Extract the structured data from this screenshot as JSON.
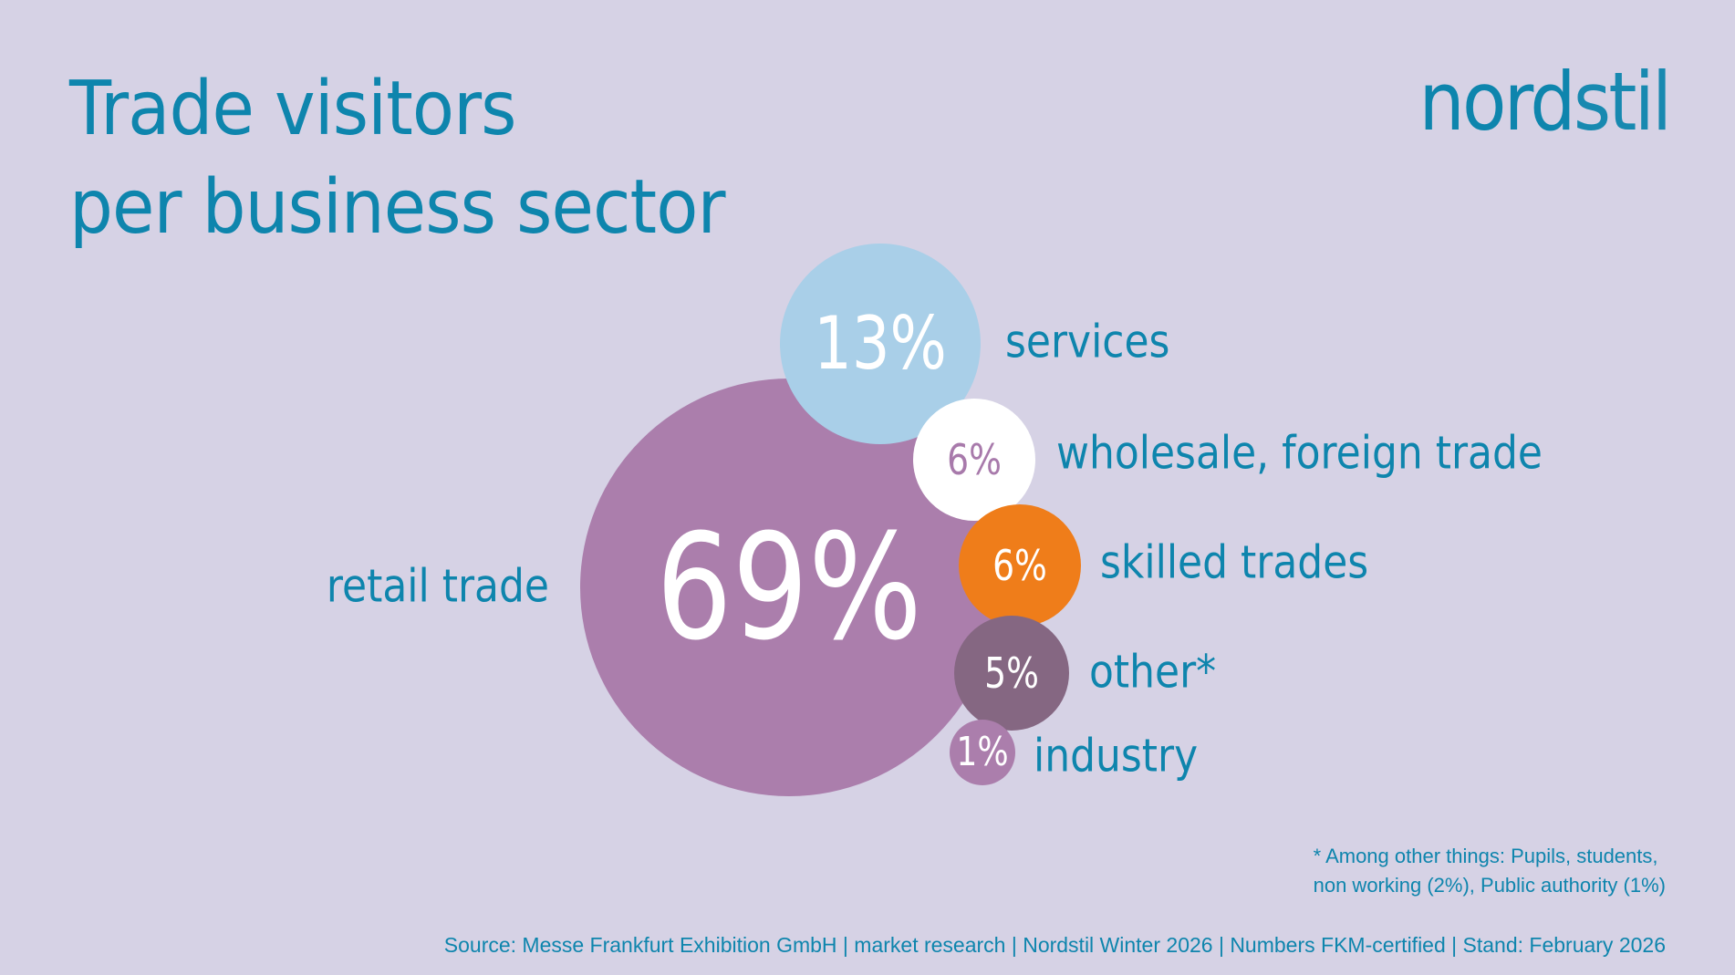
{
  "title": {
    "line1": "Trade visitors",
    "line2": "per business sector"
  },
  "brand": {
    "part1": "nord",
    "part2": "stil"
  },
  "footnote": {
    "line1": "* Among other things: Pupils, students,",
    "line2": "non working (2%), Public authority (1%)"
  },
  "source": "Source: Messe Frankfurt Exhibition GmbH | market research | Nordstil Winter 2026 | Numbers FKM-certified | Stand: February 2026",
  "colors": {
    "background": "#d6d2e5",
    "text_accent": "#0e85ad"
  },
  "chart_data": {
    "type": "bubble",
    "title": "Trade visitors per business sector",
    "series": [
      {
        "label": "retail trade",
        "value": 69,
        "value_label": "69%",
        "color": "#ab7eac",
        "text_color": "#ffffff"
      },
      {
        "label": "services",
        "value": 13,
        "value_label": "13%",
        "color": "#a9cfe8",
        "text_color": "#ffffff"
      },
      {
        "label": "wholesale, foreign trade",
        "value": 6,
        "value_label": "6%",
        "color": "#ffffff",
        "text_color": "#a87aab"
      },
      {
        "label": "skilled trades",
        "value": 6,
        "value_label": "6%",
        "color": "#ef7d1a",
        "text_color": "#ffffff"
      },
      {
        "label": "other*",
        "value": 5,
        "value_label": "5%",
        "color": "#856782",
        "text_color": "#ffffff"
      },
      {
        "label": "industry",
        "value": 1,
        "value_label": "1%",
        "color": "#ab7eac",
        "text_color": "#ffffff"
      }
    ]
  }
}
